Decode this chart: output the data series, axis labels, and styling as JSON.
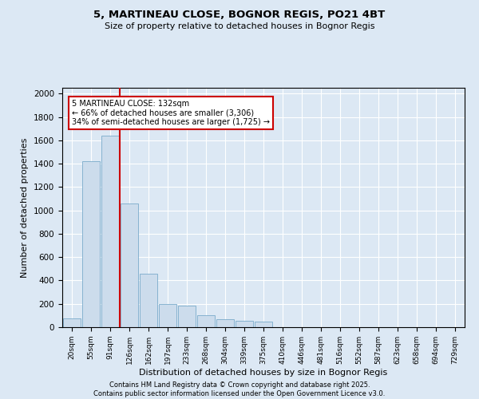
{
  "title1": "5, MARTINEAU CLOSE, BOGNOR REGIS, PO21 4BT",
  "title2": "Size of property relative to detached houses in Bognor Regis",
  "xlabel": "Distribution of detached houses by size in Bognor Regis",
  "ylabel": "Number of detached properties",
  "bar_color": "#ccdcec",
  "bar_edge_color": "#7aabca",
  "line_color": "#cc0000",
  "annotation_box_color": "#cc0000",
  "categories": [
    "20sqm",
    "55sqm",
    "91sqm",
    "126sqm",
    "162sqm",
    "197sqm",
    "233sqm",
    "268sqm",
    "304sqm",
    "339sqm",
    "375sqm",
    "410sqm",
    "446sqm",
    "481sqm",
    "516sqm",
    "552sqm",
    "587sqm",
    "623sqm",
    "658sqm",
    "694sqm",
    "729sqm"
  ],
  "values": [
    75,
    1420,
    1640,
    1060,
    460,
    200,
    185,
    100,
    65,
    55,
    50,
    0,
    0,
    0,
    0,
    0,
    0,
    0,
    0,
    0,
    0
  ],
  "ylim": [
    0,
    2050
  ],
  "yticks": [
    0,
    200,
    400,
    600,
    800,
    1000,
    1200,
    1400,
    1600,
    1800,
    2000
  ],
  "property_line_index": 3,
  "annotation_text": "5 MARTINEAU CLOSE: 132sqm\n← 66% of detached houses are smaller (3,306)\n34% of semi-detached houses are larger (1,725) →",
  "footer_text": "Contains HM Land Registry data © Crown copyright and database right 2025.\nContains public sector information licensed under the Open Government Licence v3.0.",
  "background_color": "#dce8f4",
  "plot_bg_color": "#dce8f4",
  "grid_color": "#ffffff"
}
